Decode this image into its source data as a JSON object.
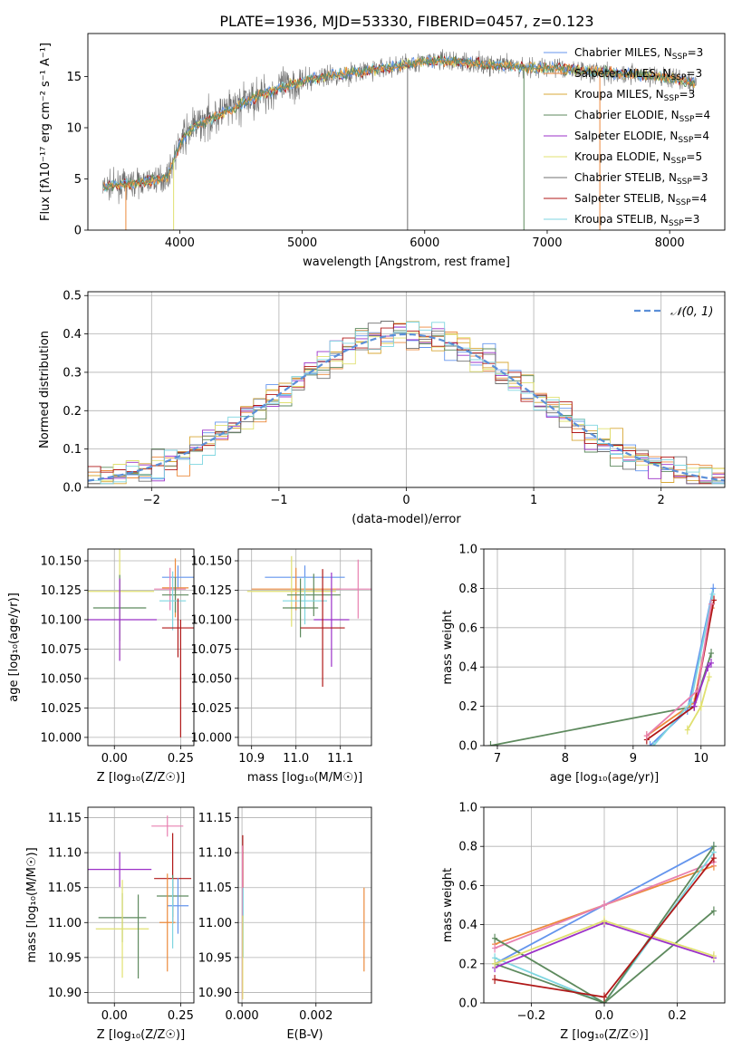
{
  "figure": {
    "title": "PLATE=1936, MJD=53330, FIBERID=0457, z=0.123"
  },
  "colors": {
    "series": [
      "#6495ed",
      "#ec8a3c",
      "#d8a838",
      "#5e8a5e",
      "#9b30c8",
      "#e0e070",
      "#707070",
      "#b01818",
      "#7fd6e0"
    ],
    "extra": {
      "pink": "#e880b0",
      "norm": "#5b8fd8"
    }
  },
  "chart_data": [
    {
      "id": "spectrum",
      "type": "line",
      "xlabel": "wavelength [Angstrom, rest frame]",
      "ylabel": "Flux [fλ10⁻¹⁷ erg cm⁻² s⁻¹ A⁻¹]",
      "xlim": [
        3250,
        8450
      ],
      "ylim": [
        0,
        19.2
      ],
      "xticks": [
        4000,
        5000,
        6000,
        7000,
        8000
      ],
      "yticks": [
        0,
        5,
        10,
        15
      ],
      "legend": "top-right",
      "grid": false,
      "continuum": {
        "x": [
          3370,
          3500,
          3700,
          3900,
          4000,
          4100,
          4300,
          4500,
          4700,
          4900,
          5100,
          5300,
          5500,
          5700,
          5900,
          6100,
          6300,
          6500,
          6700,
          6900,
          7100,
          7300,
          7500,
          7700,
          7900,
          8100,
          8220
        ],
        "y": [
          4.2,
          4.4,
          4.7,
          5.2,
          8.5,
          10.0,
          11.2,
          12.3,
          13.4,
          14.2,
          14.8,
          15.2,
          15.5,
          15.9,
          16.3,
          16.6,
          16.4,
          16.2,
          16.0,
          15.9,
          15.8,
          15.6,
          15.4,
          15.2,
          15.0,
          14.6,
          14.3
        ]
      },
      "legend_entries": [
        {
          "label": "Chabrier MILES, N",
          "sub": "SSP",
          "tail": "=3"
        },
        {
          "label": "Salpeter MILES, N",
          "sub": "SSP",
          "tail": "=3"
        },
        {
          "label": "Kroupa MILES, N",
          "sub": "SSP",
          "tail": "=3"
        },
        {
          "label": "Chabrier ELODIE, N",
          "sub": "SSP",
          "tail": "=4"
        },
        {
          "label": "Salpeter ELODIE, N",
          "sub": "SSP",
          "tail": "=4"
        },
        {
          "label": "Kroupa ELODIE, N",
          "sub": "SSP",
          "tail": "=5"
        },
        {
          "label": "Chabrier STELIB, N",
          "sub": "SSP",
          "tail": "=3"
        },
        {
          "label": "Salpeter STELIB, N",
          "sub": "SSP",
          "tail": "=4"
        },
        {
          "label": "Kroupa STELIB, N",
          "sub": "SSP",
          "tail": "=3"
        }
      ]
    },
    {
      "id": "residuals",
      "type": "line",
      "xlabel": "(data-model)/error",
      "ylabel": "Normed distribution",
      "xlim": [
        -2.5,
        2.5
      ],
      "ylim": [
        0,
        0.51
      ],
      "xticks": [
        -2,
        -1,
        0,
        1,
        2
      ],
      "yticks": [
        0.0,
        0.1,
        0.2,
        0.3,
        0.4,
        0.5
      ],
      "grid": true,
      "legend": "top-right",
      "legend_label": "𝒩(0, 1)",
      "bin_width": 0.1
    },
    {
      "id": "age_vs_Z",
      "type": "scatter",
      "xlabel": "Z [log₁₀(Z/Z☉)]",
      "ylabel": "age  [log₁₀(age/yr)]",
      "xlim": [
        -0.1,
        0.3
      ],
      "ylim": [
        9.993,
        10.16
      ],
      "xticks": [
        0.0,
        0.25
      ],
      "yticks": [
        10.0,
        10.025,
        10.05,
        10.075,
        10.1,
        10.125,
        10.15
      ],
      "grid": true,
      "points": [
        {
          "x": 0.24,
          "y": 10.136,
          "xerr": 0.06,
          "yerr": 0.01,
          "c": 0
        },
        {
          "x": 0.23,
          "y": 10.127,
          "xerr": 0.05,
          "yerr": 0.025,
          "c": 1
        },
        {
          "x": 0.21,
          "y": 10.126,
          "xerr": 0.06,
          "yerr": 0.018,
          "c": 9
        },
        {
          "x": 0.02,
          "y": 10.124,
          "xerr": 0.13,
          "yerr": 0.058,
          "c": 5
        },
        {
          "x": 0.23,
          "y": 10.121,
          "xerr": 0.05,
          "yerr": 0.015,
          "c": 3
        },
        {
          "x": 0.22,
          "y": 10.116,
          "xerr": 0.05,
          "yerr": 0.025,
          "c": 8
        },
        {
          "x": 0.02,
          "y": 10.11,
          "xerr": 0.1,
          "yerr": 0.028,
          "c": 3
        },
        {
          "x": 0.02,
          "y": 10.1,
          "xerr": 0.14,
          "yerr": 0.035,
          "c": 4
        },
        {
          "x": 0.24,
          "y": 10.093,
          "xerr": 0.06,
          "yerr": 0.025,
          "c": 7
        },
        {
          "x": 0.25,
          "y": 10.05,
          "xerr": 0.0,
          "yerr": 0.05,
          "c": 7
        }
      ]
    },
    {
      "id": "age_vs_mass",
      "type": "scatter",
      "xlabel": "mass [log₁₀(M/M☉)]",
      "ylabel": "",
      "xlim": [
        10.87,
        11.17
      ],
      "ylim": [
        9.993,
        10.16
      ],
      "xticks": [
        10.9,
        11.0,
        11.1
      ],
      "yticks": [
        10.0,
        10.025,
        10.05,
        10.075,
        10.1,
        10.125,
        10.15
      ],
      "grid": true,
      "points": [
        {
          "x": 11.02,
          "y": 10.136,
          "xerr": 0.09,
          "yerr": 0.01,
          "c": 0
        },
        {
          "x": 11.0,
          "y": 10.126,
          "xerr": 0.1,
          "yerr": 0.018,
          "c": 1
        },
        {
          "x": 11.14,
          "y": 10.126,
          "xerr": 0.05,
          "yerr": 0.025,
          "c": 9
        },
        {
          "x": 10.99,
          "y": 10.124,
          "xerr": 0.1,
          "yerr": 0.03,
          "c": 5
        },
        {
          "x": 11.04,
          "y": 10.121,
          "xerr": 0.06,
          "yerr": 0.018,
          "c": 3
        },
        {
          "x": 11.02,
          "y": 10.116,
          "xerr": 0.05,
          "yerr": 0.02,
          "c": 8
        },
        {
          "x": 11.01,
          "y": 10.11,
          "xerr": 0.04,
          "yerr": 0.025,
          "c": 3
        },
        {
          "x": 11.08,
          "y": 10.1,
          "xerr": 0.04,
          "yerr": 0.04,
          "c": 4
        },
        {
          "x": 11.06,
          "y": 10.093,
          "xerr": 0.05,
          "yerr": 0.05,
          "c": 7
        }
      ]
    },
    {
      "id": "weights_vs_age",
      "type": "line",
      "xlabel": "age  [log₁₀(age/yr)]",
      "ylabel": "mass weight",
      "xlim": [
        6.8,
        10.35
      ],
      "ylim": [
        0,
        1.0
      ],
      "xticks": [
        7,
        8,
        9,
        10
      ],
      "yticks": [
        0.0,
        0.2,
        0.4,
        0.6,
        0.8,
        1.0
      ],
      "grid": true,
      "series": [
        {
          "c": 3,
          "x": [
            6.9,
            9.9,
            10.15
          ],
          "y": [
            0.0,
            0.2,
            0.47
          ]
        },
        {
          "c": 0,
          "x": [
            9.25,
            9.8,
            10.18
          ],
          "y": [
            0.0,
            0.18,
            0.8
          ]
        },
        {
          "c": 1,
          "x": [
            9.2,
            9.9,
            10.16
          ],
          "y": [
            0.05,
            0.22,
            0.7
          ]
        },
        {
          "c": 8,
          "x": [
            9.3,
            9.85,
            10.17
          ],
          "y": [
            0.0,
            0.22,
            0.77
          ]
        },
        {
          "c": 7,
          "x": [
            9.2,
            9.9,
            10.19
          ],
          "y": [
            0.03,
            0.2,
            0.74
          ]
        },
        {
          "c": 9,
          "x": [
            9.2,
            9.95,
            10.15
          ],
          "y": [
            0.05,
            0.28,
            0.72
          ]
        },
        {
          "c": 5,
          "x": [
            9.8,
            10.0,
            10.12
          ],
          "y": [
            0.08,
            0.2,
            0.35
          ]
        },
        {
          "c": 4,
          "x": [
            9.9,
            10.1,
            10.15
          ],
          "y": [
            0.2,
            0.4,
            0.42
          ]
        }
      ]
    },
    {
      "id": "mass_vs_Z",
      "type": "scatter",
      "xlabel": "Z [log₁₀(Z/Z☉)]",
      "ylabel": "mass [log₁₀(M/M☉)]",
      "xlim": [
        -0.1,
        0.3
      ],
      "ylim": [
        10.885,
        11.165
      ],
      "xticks": [
        0.0,
        0.25
      ],
      "yticks": [
        10.9,
        10.95,
        11.0,
        11.05,
        11.1,
        11.15
      ],
      "grid": true,
      "points": [
        {
          "x": 0.2,
          "y": 11.138,
          "xerr": 0.06,
          "yerr": 0.015,
          "c": 9
        },
        {
          "x": 0.02,
          "y": 11.076,
          "xerr": 0.12,
          "yerr": 0.025,
          "c": 4
        },
        {
          "x": 0.22,
          "y": 11.063,
          "xerr": 0.07,
          "yerr": 0.065,
          "c": 7
        },
        {
          "x": 0.22,
          "y": 11.038,
          "xerr": 0.06,
          "yerr": 0.03,
          "c": 3
        },
        {
          "x": 0.24,
          "y": 11.024,
          "xerr": 0.04,
          "yerr": 0.04,
          "c": 0
        },
        {
          "x": 0.03,
          "y": 11.007,
          "xerr": 0.09,
          "yerr": 0.035,
          "c": 3
        },
        {
          "x": 0.2,
          "y": 11.0,
          "xerr": 0.03,
          "yerr": 0.07,
          "c": 1
        },
        {
          "x": 0.03,
          "y": 10.991,
          "xerr": 0.1,
          "yerr": 0.07,
          "c": 5
        },
        {
          "x": 0.09,
          "y": 10.98,
          "xerr": 0.0,
          "yerr": 0.06,
          "c": 3
        },
        {
          "x": 0.22,
          "y": 11.013,
          "xerr": 0.0,
          "yerr": 0.05,
          "c": 8
        }
      ]
    },
    {
      "id": "mass_vs_ebv",
      "type": "scatter",
      "xlabel": "E(B-V)",
      "ylabel": "",
      "xlim": [
        -0.0001,
        0.0035
      ],
      "ylim": [
        10.885,
        11.165
      ],
      "xticks": [
        0.0,
        0.002
      ],
      "yticks": [
        10.9,
        10.95,
        11.0,
        11.05,
        11.1,
        11.15
      ],
      "grid": true,
      "points": [
        {
          "x": 2e-05,
          "y": 11.075,
          "xerr": 0,
          "yerr": 0.05,
          "c": 7
        },
        {
          "x": 1e-05,
          "y": 11.0,
          "xerr": 0,
          "yerr": 0.11,
          "c": 9
        },
        {
          "x": 3e-05,
          "y": 11.0,
          "xerr": 0,
          "yerr": 0.05,
          "c": 8
        },
        {
          "x": 2e-05,
          "y": 10.95,
          "xerr": 0,
          "yerr": 0.06,
          "c": 5
        },
        {
          "x": 0.0033,
          "y": 10.99,
          "xerr": 0,
          "yerr": 0.06,
          "c": 1
        }
      ]
    },
    {
      "id": "weights_vs_Z",
      "type": "line",
      "xlabel": "Z [log₁₀(Z/Z☉)]",
      "ylabel": "mass weight",
      "xlim": [
        -0.33,
        0.33
      ],
      "ylim": [
        0,
        1.0
      ],
      "xticks": [
        -0.2,
        0.0,
        0.2
      ],
      "yticks": [
        0.0,
        0.2,
        0.4,
        0.6,
        0.8,
        1.0
      ],
      "grid": true,
      "series": [
        {
          "c": 0,
          "x": [
            -0.3,
            0.0,
            0.3
          ],
          "y": [
            0.2,
            0.5,
            0.8
          ]
        },
        {
          "c": 1,
          "x": [
            -0.3,
            0.0,
            0.3
          ],
          "y": [
            0.3,
            0.5,
            0.7
          ]
        },
        {
          "c": 9,
          "x": [
            -0.3,
            0.0,
            0.3
          ],
          "y": [
            0.28,
            0.5,
            0.72
          ]
        },
        {
          "c": 8,
          "x": [
            -0.3,
            0.0,
            0.3
          ],
          "y": [
            0.23,
            0.0,
            0.77
          ]
        },
        {
          "c": 3,
          "x": [
            -0.3,
            0.0,
            0.3
          ],
          "y": [
            0.33,
            0.0,
            0.47
          ]
        },
        {
          "c": 3,
          "x": [
            -0.3,
            0.0,
            0.3
          ],
          "y": [
            0.2,
            0.0,
            0.8
          ]
        },
        {
          "c": 4,
          "x": [
            -0.3,
            0.0,
            0.3
          ],
          "y": [
            0.18,
            0.41,
            0.23
          ]
        },
        {
          "c": 5,
          "x": [
            -0.3,
            0.0,
            0.3
          ],
          "y": [
            0.2,
            0.42,
            0.24
          ]
        },
        {
          "c": 7,
          "x": [
            -0.3,
            0.0,
            0.3
          ],
          "y": [
            0.12,
            0.03,
            0.74
          ]
        }
      ]
    }
  ]
}
